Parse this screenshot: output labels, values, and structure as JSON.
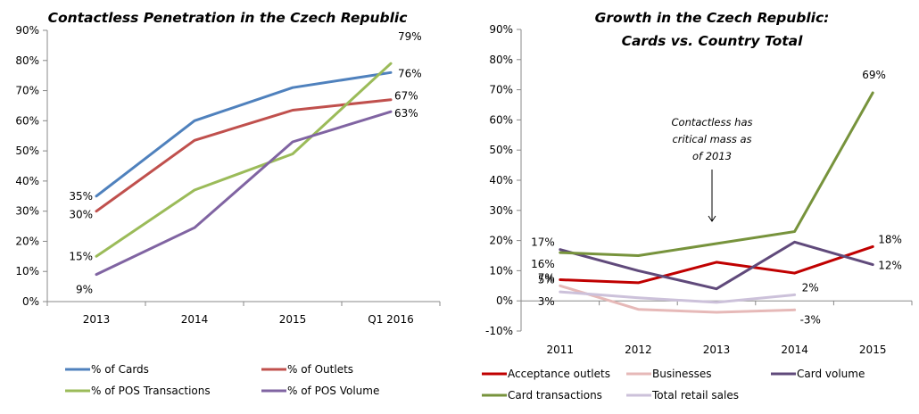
{
  "chart_data": [
    {
      "type": "line",
      "title": "Contactless Penetration  in the Czech Republic",
      "title_lines": [
        "Contactless Penetration  in the Czech Republic"
      ],
      "xlabel": "",
      "ylabel": "",
      "categories": [
        "2013",
        "2014",
        "2015",
        "Q1 2016"
      ],
      "ylim": [
        0,
        90
      ],
      "yticks": [
        0,
        10,
        20,
        30,
        40,
        50,
        60,
        70,
        80,
        90
      ],
      "ytick_labels": [
        "0%",
        "10%",
        "20%",
        "30%",
        "40%",
        "50%",
        "60%",
        "70%",
        "80%",
        "90%"
      ],
      "grid": false,
      "legend_position": "bottom",
      "series": [
        {
          "name": "% of Cards",
          "color": "#4f81bd",
          "values": [
            35,
            60,
            71,
            76
          ],
          "labels": {
            "0": "35%",
            "3": "76%"
          }
        },
        {
          "name": "% of Outlets",
          "color": "#c0504d",
          "values": [
            30,
            53.5,
            63.5,
            67
          ],
          "labels": {
            "0": "30%",
            "3": "67%"
          }
        },
        {
          "name": "% of POS Transactions",
          "color": "#9bbb59",
          "values": [
            15,
            37,
            49,
            79
          ],
          "labels": {
            "0": "15%",
            "3": "79%"
          }
        },
        {
          "name": "% of POS Volume",
          "color": "#8064a2",
          "values": [
            9,
            24.5,
            53,
            63
          ],
          "labels": {
            "0": "9%",
            "3": "63%"
          }
        }
      ]
    },
    {
      "type": "line",
      "title": "Growth in the Czech Republic: Cards vs. Country Total",
      "title_lines": [
        "Growth in the Czech Republic:",
        "Cards vs. Country Total"
      ],
      "xlabel": "",
      "ylabel": "",
      "categories": [
        "2011",
        "2012",
        "2013",
        "2014",
        "2015"
      ],
      "ylim": [
        -10,
        90
      ],
      "yticks": [
        -10,
        0,
        10,
        20,
        30,
        40,
        50,
        60,
        70,
        80,
        90
      ],
      "ytick_labels": [
        "-10%",
        "0%",
        "10%",
        "20%",
        "30%",
        "40%",
        "50%",
        "60%",
        "70%",
        "80%",
        "90%"
      ],
      "grid": false,
      "legend_position": "bottom",
      "annotation": {
        "lines": [
          "Contactless has",
          "critical mass as",
          "of 2013"
        ],
        "points_to": "2013"
      },
      "series": [
        {
          "name": "Acceptance outlets",
          "color": "#c00000",
          "values": [
            7,
            6,
            12.8,
            9.2,
            18
          ],
          "labels": {
            "0": "7%",
            "4": "18%"
          }
        },
        {
          "name": "Businesses",
          "color": "#e6b9b8",
          "values": [
            5,
            -2.8,
            -3.8,
            -3,
            null
          ],
          "labels": {
            "0": "5%",
            "3": "-3%"
          }
        },
        {
          "name": "Card volume",
          "color": "#604a7b",
          "values": [
            17,
            10,
            4,
            19.5,
            12
          ],
          "labels": {
            "0": "17%",
            "4": "12%"
          }
        },
        {
          "name": "Card transactions",
          "color": "#77933c",
          "values": [
            16,
            15,
            19,
            23,
            69
          ],
          "labels": {
            "0": "16%",
            "4": "69%"
          }
        },
        {
          "name": "Total retail sales",
          "color": "#ccc1da",
          "values": [
            3,
            1,
            -0.5,
            2,
            null
          ],
          "labels": {
            "0": "3%",
            "3": "2%"
          }
        }
      ]
    }
  ]
}
